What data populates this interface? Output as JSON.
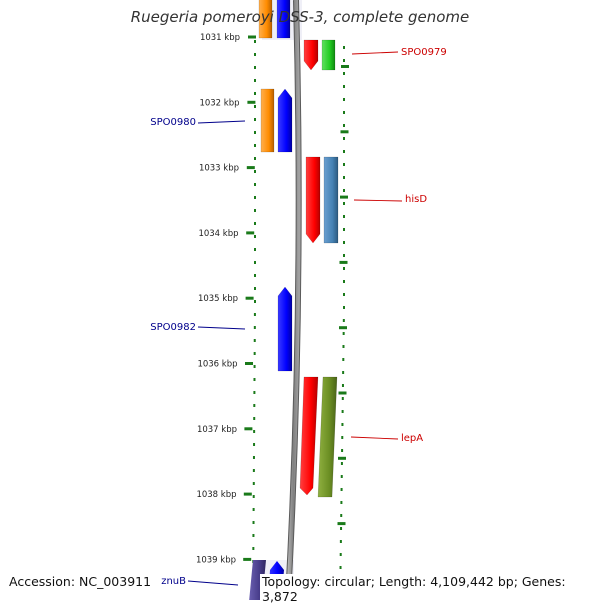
{
  "title": "Ruegeria pomeroyi DSS-3, complete genome",
  "accession": "Accession: NC_003911",
  "topology": "Topology: circular; Length: 4,109,442 bp; Genes: 3,872",
  "ticks": [
    {
      "label": "1031 kbp",
      "kbp": 1031
    },
    {
      "label": "1032 kbp",
      "kbp": 1032
    },
    {
      "label": "1033 kbp",
      "kbp": 1033
    },
    {
      "label": "1034 kbp",
      "kbp": 1034
    },
    {
      "label": "1035 kbp",
      "kbp": 1035
    },
    {
      "label": "1036 kbp",
      "kbp": 1036
    },
    {
      "label": "1037 kbp",
      "kbp": 1037
    },
    {
      "label": "1038 kbp",
      "kbp": 1038
    },
    {
      "label": "1039 kbp",
      "kbp": 1039
    }
  ],
  "gene_labels": [
    {
      "name": "SPO0979",
      "strand": "plus",
      "color": "#cc0000"
    },
    {
      "name": "SPO0980",
      "strand": "minus",
      "color": "#00008b"
    },
    {
      "name": "hisD",
      "strand": "plus",
      "color": "#cc0000"
    },
    {
      "name": "SPO0982",
      "strand": "minus",
      "color": "#00008b"
    },
    {
      "name": "lepA",
      "strand": "plus",
      "color": "#cc0000"
    },
    {
      "name": "znuB",
      "strand": "minus",
      "color": "#00008b"
    }
  ],
  "colors": {
    "plus_strand_gene": "#ff0000",
    "minus_strand_gene": "#0000ff",
    "backbone": "#888888",
    "tick_marks": "#1a7a1a",
    "orange_track": "#ff8c00",
    "green_track": "#22cc22",
    "steelblue_track": "#4682b4",
    "olive_track": "#6b8e23",
    "slate_track": "#483d8b"
  }
}
